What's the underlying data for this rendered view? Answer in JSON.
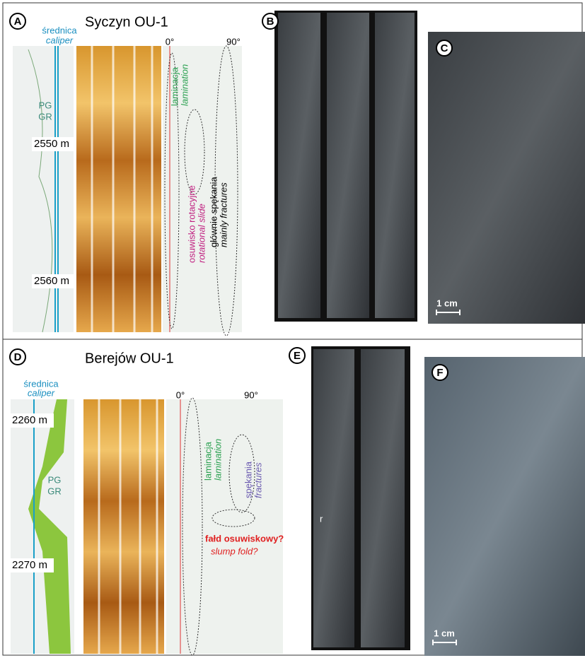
{
  "panel_a": {
    "label": "A",
    "title": "Syczyn OU-1",
    "caliper_pl": "średnica",
    "caliper_en": "caliper",
    "axis_min": "0°",
    "axis_max": "90°",
    "pg": "PG",
    "gr": "GR",
    "depth_top": "2550 m",
    "depth_bottom": "2560 m",
    "lamination_pl": "laminacja",
    "lamination_en": "lamination",
    "slide_pl": "osuwisko rotacyjne",
    "slide_en": "rotational slide",
    "fractures_pl": "głównie spękania",
    "fractures_en": "mainly fractures"
  },
  "panel_b": {
    "label": "B"
  },
  "panel_c": {
    "label": "C",
    "scale": "1 cm"
  },
  "panel_d": {
    "label": "D",
    "title": "Berejów OU-1",
    "caliper_pl": "średnica",
    "caliper_en": "caliper",
    "axis_min": "0°",
    "axis_max": "90°",
    "pg": "PG",
    "gr": "GR",
    "depth_top": "2260 m",
    "depth_bottom": "2270 m",
    "lamination_pl": "laminacja",
    "lamination_en": "lamination",
    "fractures_pl": "spękania",
    "fractures_en": "fractures",
    "fold_pl": "fałd osuwiskowy?",
    "fold_en": "slump fold?"
  },
  "panel_e": {
    "label": "E",
    "marker": "r"
  },
  "panel_f": {
    "label": "F",
    "scale": "1 cm"
  }
}
